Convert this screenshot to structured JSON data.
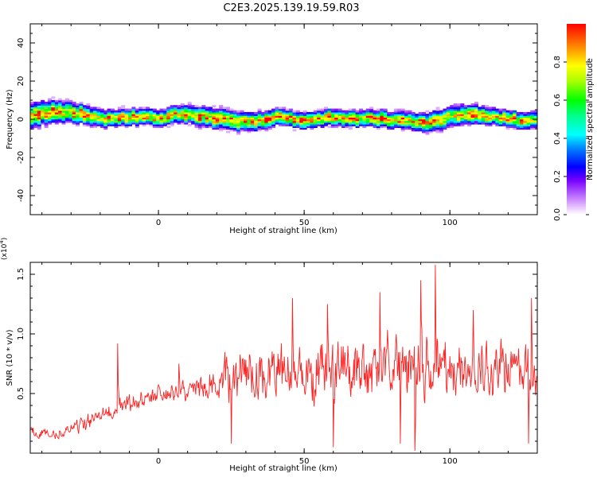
{
  "figure": {
    "title": "C2E3.2025.139.19.59.R03"
  },
  "chart_data": [
    {
      "type": "heatmap",
      "xlabel": "Height of straight line (km)",
      "ylabel": "Frequency (Hz)",
      "xlim": [
        -44,
        130
      ],
      "ylim": [
        -50,
        50
      ],
      "xticks": [
        0,
        50,
        100
      ],
      "yticks": [
        -40,
        -20,
        0,
        20,
        40
      ],
      "colorbar": {
        "label": "Normalized spectral amplitude",
        "range": [
          0,
          1
        ],
        "ticks": [
          0.0,
          0.2,
          0.4,
          0.6,
          0.8
        ],
        "tick_labels": [
          "0.0",
          "0.2",
          "0.4",
          "0.6",
          "0.8"
        ]
      },
      "ridge_frequency_hz": [
        [
          -44,
          2
        ],
        [
          -40,
          3
        ],
        [
          -35,
          4
        ],
        [
          -30,
          3
        ],
        [
          -25,
          2
        ],
        [
          -20,
          0
        ],
        [
          -15,
          0
        ],
        [
          -10,
          1
        ],
        [
          -5,
          1
        ],
        [
          0,
          0
        ],
        [
          5,
          2
        ],
        [
          10,
          2
        ],
        [
          15,
          1
        ],
        [
          20,
          0
        ],
        [
          25,
          -1
        ],
        [
          30,
          -2
        ],
        [
          35,
          -1
        ],
        [
          40,
          1
        ],
        [
          45,
          0
        ],
        [
          50,
          -1
        ],
        [
          55,
          0
        ],
        [
          60,
          1
        ],
        [
          65,
          0
        ],
        [
          70,
          0
        ],
        [
          75,
          0
        ],
        [
          80,
          -1
        ],
        [
          85,
          -1
        ],
        [
          90,
          -2
        ],
        [
          95,
          -1
        ],
        [
          100,
          1
        ],
        [
          105,
          2
        ],
        [
          110,
          2
        ],
        [
          115,
          1
        ],
        [
          120,
          0
        ],
        [
          125,
          -1
        ],
        [
          130,
          0
        ]
      ],
      "ridge_halfwidth_hz": [
        [
          -44,
          6
        ],
        [
          -30,
          5
        ],
        [
          -15,
          4
        ],
        [
          0,
          4
        ],
        [
          20,
          5
        ],
        [
          40,
          4
        ],
        [
          60,
          4
        ],
        [
          80,
          4
        ],
        [
          100,
          5
        ],
        [
          115,
          4
        ],
        [
          130,
          4
        ]
      ],
      "grid": false
    },
    {
      "type": "line",
      "xlabel": "Height of straight line (km)",
      "ylabel": "SNR (10 * v/v)",
      "y_multiplier": "(x10",
      "y_multiplier_exp": "4",
      "y_multiplier_close": ")",
      "xlim": [
        -44,
        130
      ],
      "ylim": [
        0,
        1.6
      ],
      "xticks": [
        0,
        50,
        100
      ],
      "yticks": [
        0.5,
        1.0,
        1.5
      ],
      "ytick_labels": [
        "0.5",
        "1.0",
        "1.5"
      ],
      "line_color": "#ff2020",
      "series": [
        {
          "envelope": {
            "x": [
              -44,
              -35,
              -25,
              -15,
              -5,
              5,
              15,
              20,
              25,
              30,
              40,
              50,
              60,
              70,
              80,
              90,
              95,
              100,
              110,
              120,
              130
            ],
            "mean": [
              0.2,
              0.15,
              0.25,
              0.38,
              0.45,
              0.5,
              0.55,
              0.62,
              0.65,
              0.68,
              0.7,
              0.7,
              0.72,
              0.72,
              0.75,
              0.74,
              0.74,
              0.72,
              0.7,
              0.7,
              0.68
            ],
            "amplitude": [
              0.08,
              0.07,
              0.1,
              0.12,
              0.13,
              0.12,
              0.15,
              0.2,
              0.32,
              0.35,
              0.35,
              0.38,
              0.38,
              0.36,
              0.4,
              0.42,
              0.45,
              0.4,
              0.38,
              0.35,
              0.38
            ]
          },
          "peaks": [
            [
              -14,
              0.92
            ],
            [
              7,
              0.75
            ],
            [
              25,
              1.1
            ],
            [
              46,
              1.3
            ],
            [
              58,
              1.25
            ],
            [
              76,
              1.35
            ],
            [
              90,
              1.45
            ],
            [
              95,
              1.58
            ],
            [
              108,
              1.2
            ],
            [
              128,
              1.3
            ]
          ],
          "troughs": [
            [
              25,
              0.08
            ],
            [
              60,
              0.05
            ],
            [
              83,
              0.08
            ],
            [
              88,
              0.02
            ],
            [
              127,
              0.08
            ]
          ]
        }
      ]
    }
  ]
}
